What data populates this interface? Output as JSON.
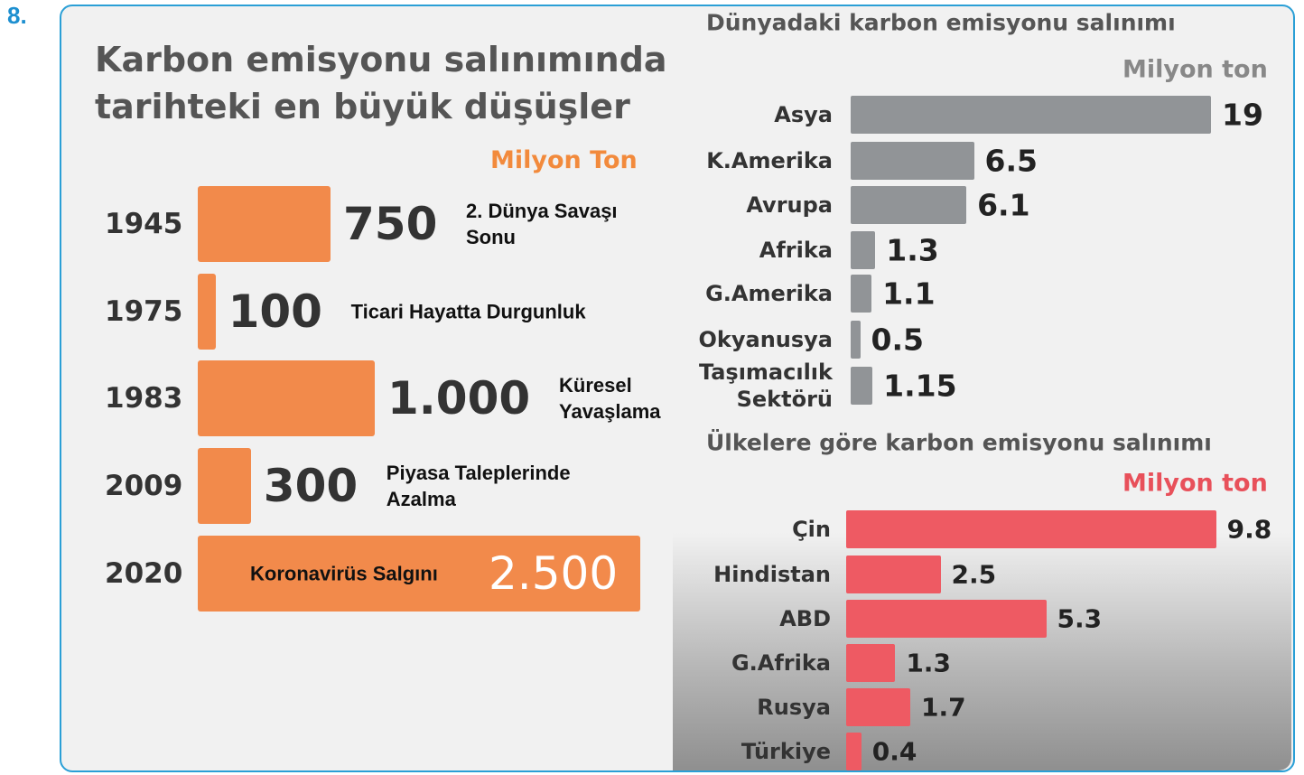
{
  "question_number": "8.",
  "chart_data": [
    {
      "type": "bar",
      "orientation": "horizontal",
      "title": "Karbon emisyonu salınımında tarihteki en büyük düşüşler",
      "unit": "Milyon Ton",
      "categories": [
        "1945",
        "1975",
        "1983",
        "2009",
        "2020"
      ],
      "values": [
        750,
        100,
        1000,
        300,
        2500
      ],
      "value_labels": [
        "750",
        "100",
        "1.000",
        "300",
        "2.500"
      ],
      "annotations": [
        "2. Dünya Savaşı Sonu",
        "Ticari Hayatta Durgunluk",
        "Küresel Yavaşlama",
        "Piyasa Taleplerinde Azalma",
        "Koronavirüs Salgını"
      ],
      "color": "#f28a4b"
    },
    {
      "type": "bar",
      "orientation": "horizontal",
      "title": "Dünyadaki karbon emisyonu salınımı",
      "unit": "Milyon ton",
      "categories": [
        "Asya",
        "K.Amerika",
        "Avrupa",
        "Afrika",
        "G.Amerika",
        "Okyanusya",
        "Taşımacılık Sektörü"
      ],
      "values": [
        19,
        6.5,
        6.1,
        1.3,
        1.1,
        0.5,
        1.15
      ],
      "color": "#919497"
    },
    {
      "type": "bar",
      "orientation": "horizontal",
      "title": "Ülkelere göre karbon emisyonu salınımı",
      "unit": "Milyon ton",
      "categories": [
        "Çin",
        "Hindistan",
        "ABD",
        "G.Afrika",
        "Rusya",
        "Türkiye"
      ],
      "values": [
        9.8,
        2.5,
        5.3,
        1.3,
        1.7,
        0.4
      ],
      "color": "#ee5a63"
    }
  ]
}
